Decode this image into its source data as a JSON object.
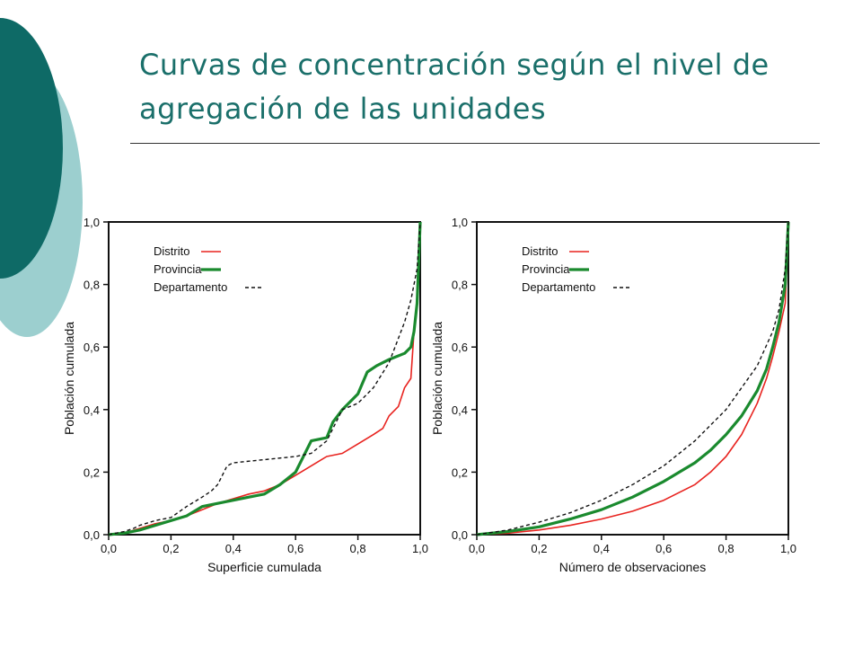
{
  "slide": {
    "title_line1": "Curvas de concentración según el nivel de",
    "title_line2": "agregación de las unidades",
    "accent_dark": "#0e6a66",
    "accent_light": "#9ccfcf",
    "title_color": "#1a6f6a"
  },
  "chart_data": [
    {
      "type": "line",
      "xlabel": "Superficie cumulada",
      "ylabel": "Población cumulada",
      "xlim": [
        0,
        1
      ],
      "ylim": [
        0,
        1
      ],
      "ticks": [
        "0,0",
        "0,2",
        "0,4",
        "0,6",
        "0,8",
        "1,0"
      ],
      "tick_values": [
        0,
        0.2,
        0.4,
        0.6,
        0.8,
        1.0
      ],
      "legend_position": "top-left",
      "series": [
        {
          "name": "Distrito",
          "color": "#e8231f",
          "dash": "solid",
          "width": 1.6,
          "x": [
            0,
            0.05,
            0.1,
            0.15,
            0.2,
            0.25,
            0.3,
            0.35,
            0.4,
            0.45,
            0.5,
            0.55,
            0.6,
            0.65,
            0.7,
            0.75,
            0.8,
            0.85,
            0.88,
            0.9,
            0.93,
            0.95,
            0.97,
            0.98,
            0.99,
            1.0
          ],
          "y": [
            0,
            0.005,
            0.02,
            0.035,
            0.045,
            0.06,
            0.08,
            0.1,
            0.115,
            0.13,
            0.14,
            0.16,
            0.19,
            0.22,
            0.25,
            0.26,
            0.29,
            0.32,
            0.34,
            0.38,
            0.41,
            0.47,
            0.5,
            0.65,
            0.75,
            1.0
          ]
        },
        {
          "name": "Provincia",
          "color": "#1a8a2e",
          "dash": "solid",
          "width": 3.2,
          "x": [
            0,
            0.05,
            0.1,
            0.15,
            0.2,
            0.25,
            0.3,
            0.35,
            0.4,
            0.45,
            0.5,
            0.55,
            0.6,
            0.65,
            0.7,
            0.72,
            0.75,
            0.8,
            0.83,
            0.86,
            0.9,
            0.95,
            0.97,
            0.98,
            0.99,
            1.0
          ],
          "y": [
            0,
            0.005,
            0.015,
            0.03,
            0.045,
            0.06,
            0.09,
            0.1,
            0.11,
            0.12,
            0.13,
            0.16,
            0.2,
            0.3,
            0.31,
            0.36,
            0.4,
            0.45,
            0.52,
            0.54,
            0.56,
            0.58,
            0.6,
            0.65,
            0.74,
            1.0
          ]
        },
        {
          "name": "Departamento",
          "color": "#111111",
          "dash": "dashed",
          "width": 1.4,
          "x": [
            0,
            0.05,
            0.08,
            0.1,
            0.15,
            0.2,
            0.25,
            0.3,
            0.33,
            0.35,
            0.37,
            0.38,
            0.4,
            0.5,
            0.6,
            0.65,
            0.7,
            0.75,
            0.8,
            0.85,
            0.9,
            0.95,
            0.97,
            0.99,
            1.0
          ],
          "y": [
            0,
            0.01,
            0.02,
            0.03,
            0.045,
            0.055,
            0.09,
            0.12,
            0.14,
            0.16,
            0.2,
            0.22,
            0.23,
            0.24,
            0.25,
            0.26,
            0.3,
            0.4,
            0.42,
            0.47,
            0.55,
            0.68,
            0.75,
            0.85,
            1.0
          ]
        }
      ]
    },
    {
      "type": "line",
      "xlabel": "Número de observaciones",
      "ylabel": "Población cumulada",
      "xlim": [
        0,
        1
      ],
      "ylim": [
        0,
        1
      ],
      "ticks": [
        "0,0",
        "0,2",
        "0,4",
        "0,6",
        "0,8",
        "1,0"
      ],
      "tick_values": [
        0,
        0.2,
        0.4,
        0.6,
        0.8,
        1.0
      ],
      "legend_position": "top-left",
      "series": [
        {
          "name": "Distrito",
          "color": "#e8231f",
          "dash": "solid",
          "width": 1.6,
          "x": [
            0,
            0.1,
            0.2,
            0.3,
            0.4,
            0.5,
            0.6,
            0.7,
            0.75,
            0.8,
            0.85,
            0.9,
            0.93,
            0.95,
            0.97,
            0.99,
            1.0
          ],
          "y": [
            0,
            0.005,
            0.015,
            0.03,
            0.05,
            0.075,
            0.11,
            0.16,
            0.2,
            0.25,
            0.32,
            0.42,
            0.5,
            0.57,
            0.65,
            0.74,
            1.0
          ]
        },
        {
          "name": "Provincia",
          "color": "#1a8a2e",
          "dash": "solid",
          "width": 3.2,
          "x": [
            0,
            0.1,
            0.2,
            0.3,
            0.4,
            0.5,
            0.6,
            0.7,
            0.75,
            0.8,
            0.85,
            0.9,
            0.93,
            0.95,
            0.97,
            0.99,
            1.0
          ],
          "y": [
            0,
            0.01,
            0.025,
            0.05,
            0.08,
            0.12,
            0.17,
            0.23,
            0.27,
            0.32,
            0.38,
            0.46,
            0.53,
            0.6,
            0.68,
            0.8,
            1.0
          ]
        },
        {
          "name": "Departamento",
          "color": "#111111",
          "dash": "dashed",
          "width": 1.4,
          "x": [
            0,
            0.1,
            0.2,
            0.3,
            0.4,
            0.5,
            0.6,
            0.7,
            0.8,
            0.9,
            0.95,
            0.97,
            0.99,
            1.0
          ],
          "y": [
            0,
            0.015,
            0.04,
            0.07,
            0.11,
            0.16,
            0.22,
            0.3,
            0.4,
            0.54,
            0.65,
            0.72,
            0.85,
            1.0
          ]
        }
      ]
    }
  ]
}
